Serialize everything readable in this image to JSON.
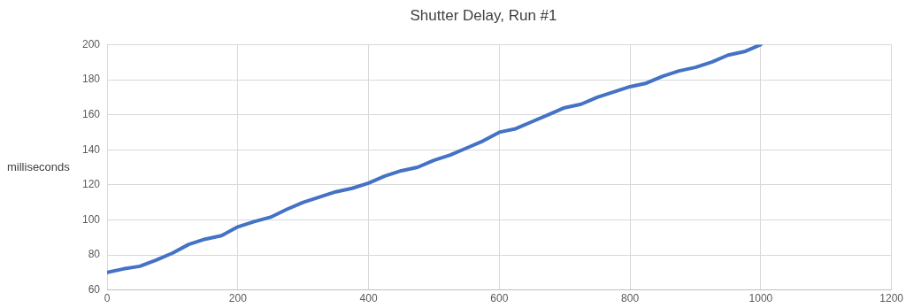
{
  "chart_data": {
    "type": "line",
    "title": "Shutter Delay, Run #1",
    "ylabel": "milliseconds",
    "x": [
      0,
      25,
      50,
      75,
      100,
      125,
      150,
      175,
      200,
      225,
      250,
      275,
      300,
      325,
      350,
      375,
      400,
      425,
      450,
      475,
      500,
      525,
      550,
      575,
      600,
      625,
      650,
      675,
      700,
      725,
      750,
      775,
      800,
      825,
      850,
      875,
      900,
      925,
      950,
      975,
      1000
    ],
    "series": [
      {
        "color": "#4472c4",
        "values": [
          70,
          72,
          73.5,
          77,
          81,
          86,
          89,
          91,
          96,
          99,
          101.5,
          106,
          110,
          113,
          116,
          118,
          121,
          125,
          128,
          130,
          134,
          137,
          141,
          145,
          150,
          152,
          156,
          160,
          164,
          166,
          170,
          173,
          176,
          178,
          182,
          185,
          187,
          190,
          194,
          196,
          200
        ]
      }
    ],
    "xlim": [
      0,
      1200
    ],
    "xticks": [
      0,
      200,
      400,
      600,
      800,
      1000,
      1200
    ],
    "ylim": [
      60,
      200
    ],
    "yticks": [
      60,
      80,
      100,
      120,
      140,
      160,
      180,
      200
    ],
    "grid": true,
    "legend": false,
    "marker": "none",
    "line_style": "solid"
  }
}
